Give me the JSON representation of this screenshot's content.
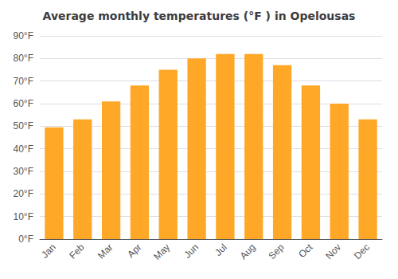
{
  "chart_data": {
    "type": "bar",
    "title": "Average monthly temperatures (°F ) in Opelousas",
    "categories": [
      "Jan",
      "Feb",
      "Mar",
      "Apr",
      "May",
      "Jun",
      "Jul",
      "Aug",
      "Sep",
      "Oct",
      "Nov",
      "Dec"
    ],
    "values": [
      49.5,
      53,
      61,
      68,
      75,
      80,
      82,
      82,
      77,
      68,
      60,
      53
    ],
    "color": "#FFA726",
    "ylim": [
      0,
      90
    ],
    "yticks": [
      {
        "value": 0,
        "label": "0°F"
      },
      {
        "value": 10,
        "label": "10°F"
      },
      {
        "value": 20,
        "label": "20°F"
      },
      {
        "value": 30,
        "label": "30°F"
      },
      {
        "value": 40,
        "label": "40°F"
      },
      {
        "value": 50,
        "label": "50°F"
      },
      {
        "value": 60,
        "label": "60°F"
      },
      {
        "value": 70,
        "label": "70°F"
      },
      {
        "value": 80,
        "label": "80°F"
      },
      {
        "value": 90,
        "label": "90°F"
      }
    ],
    "grid": true
  }
}
